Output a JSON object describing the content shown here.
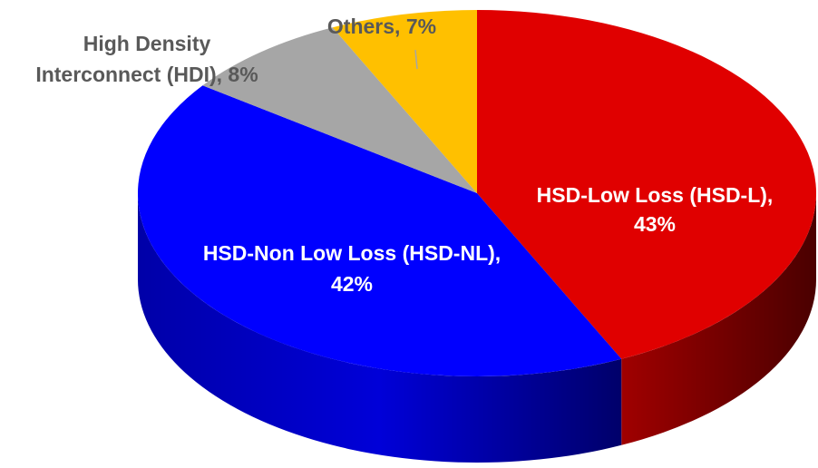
{
  "chart_data": {
    "type": "pie",
    "three_d": true,
    "legend": "none",
    "slices": [
      {
        "label": "HSD-Low Loss (HSD-L),",
        "value": 43,
        "value_label": "43%",
        "color": "#e00000",
        "side_color": "#7a0000"
      },
      {
        "label": "HSD-Non Low Loss (HSD-NL),",
        "value": 42,
        "value_label": "42%",
        "color": "#0000ff",
        "side_color": "#00008a"
      },
      {
        "label": "High Density Interconnect (HDI), 8%",
        "label_lines": [
          "High Density",
          "Interconnect (HDI), 8%"
        ],
        "value": 8,
        "color": "#a6a6a6",
        "side_color": "#6e6e6e"
      },
      {
        "label": "Others, 7%",
        "value": 7,
        "color": "#ffc000",
        "side_color": "#b08400"
      }
    ]
  }
}
